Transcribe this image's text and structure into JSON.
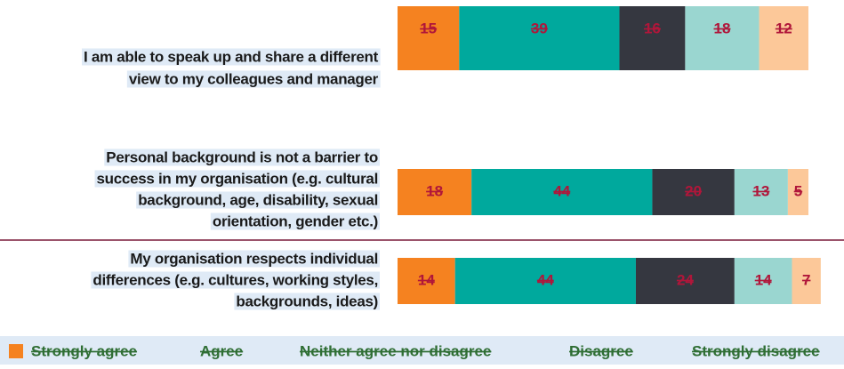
{
  "chart_data": {
    "type": "stacked-bar-horizontal",
    "categories": [
      [
        "I am able to speak up and share a different",
        "view to my colleagues and manager"
      ],
      [
        "Personal background is not a barrier to",
        "success in my organisation (e.g. cultural",
        "background, age, disability, sexual",
        "orientation, gender etc.)"
      ],
      [
        "My organisation respects individual",
        "differences (e.g. cultures, working  styles,",
        "backgrounds, ideas)"
      ]
    ],
    "series": [
      {
        "name": "Strongly agree",
        "color": "#f58220",
        "values": [
          15,
          18,
          14
        ]
      },
      {
        "name": "Agree",
        "color": "#00a99d",
        "values": [
          39,
          44,
          44
        ]
      },
      {
        "name": "Neither agree nor disagree",
        "color": "#353740",
        "values": [
          16,
          20,
          24
        ]
      },
      {
        "name": "Disagree",
        "color": "#9ad6d0",
        "values": [
          18,
          13,
          14
        ]
      },
      {
        "name": "Strongly disagree",
        "color": "#fcc899",
        "values": [
          12,
          5,
          7
        ]
      }
    ],
    "legend": "bottom"
  }
}
